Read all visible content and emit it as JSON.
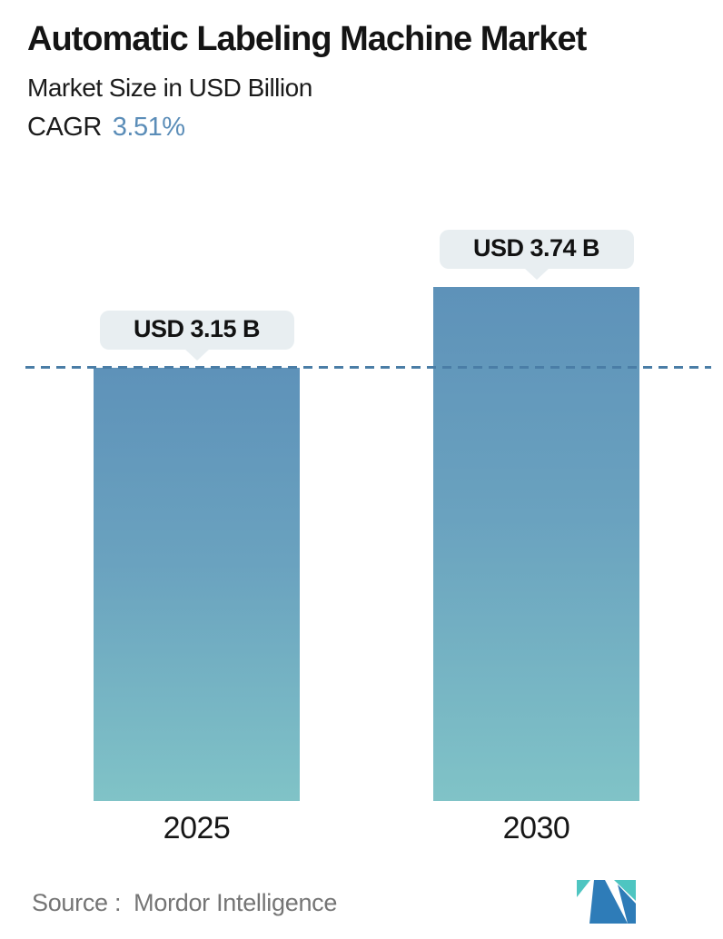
{
  "header": {
    "title": "Automatic Labeling Machine Market",
    "subtitle": "Market Size in USD Billion",
    "cagr_label": "CAGR",
    "cagr_value": "3.51%"
  },
  "chart_data": {
    "type": "bar",
    "title": "Automatic Labeling Machine Market",
    "subtitle": "Market Size in USD Billion",
    "unit": "USD Billion",
    "cagr_percent": 3.51,
    "categories": [
      "2025",
      "2030"
    ],
    "values": [
      3.15,
      3.74
    ],
    "value_labels": [
      "USD 3.15 B",
      "USD 3.74 B"
    ],
    "baseline": 0,
    "grid": false,
    "legend": false,
    "reference_line": {
      "at_value": 3.15,
      "style": "dashed",
      "color": "#4a7da6"
    }
  },
  "footer": {
    "source_label": "Source :",
    "source_value": "Mordor Intelligence",
    "logo": "mordor-intelligence-logo"
  },
  "colors": {
    "cagr_accent": "#5b8db8",
    "bar_gradient_top": "#5e92b9",
    "bar_gradient_bottom": "#80c3c7",
    "dashed_line": "#4a7da6",
    "callout_background": "#e8eef1",
    "source_text": "#757575",
    "logo_teal": "#4ec5c1",
    "logo_blue": "#2e7cb8"
  }
}
